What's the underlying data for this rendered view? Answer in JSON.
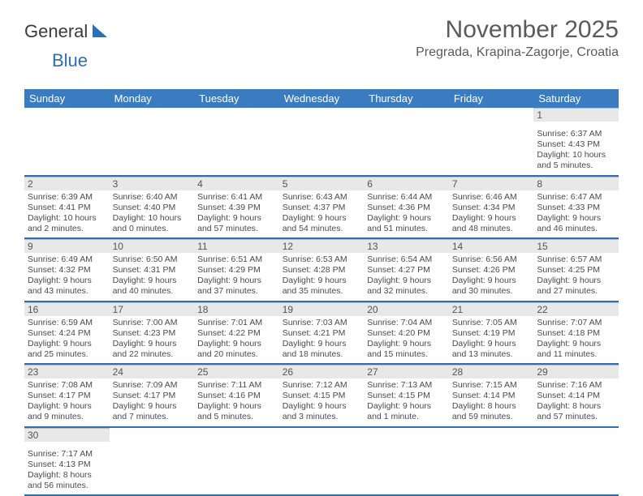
{
  "logo": {
    "text1": "General",
    "text2": "Blue"
  },
  "title": "November 2025",
  "location": "Pregrada, Krapina-Zagorje, Croatia",
  "colors": {
    "header_bg": "#3b7bbf",
    "header_fg": "#ffffff",
    "daynum_bg": "#e8e8e8",
    "rule": "#2d6fb5",
    "text": "#4a4a4a"
  },
  "weekdays": [
    "Sunday",
    "Monday",
    "Tuesday",
    "Wednesday",
    "Thursday",
    "Friday",
    "Saturday"
  ],
  "weeks": [
    [
      null,
      null,
      null,
      null,
      null,
      null,
      {
        "n": "1",
        "sr": "Sunrise: 6:37 AM",
        "ss": "Sunset: 4:43 PM",
        "dl": "Daylight: 10 hours and 5 minutes."
      }
    ],
    [
      {
        "n": "2",
        "sr": "Sunrise: 6:39 AM",
        "ss": "Sunset: 4:41 PM",
        "dl": "Daylight: 10 hours and 2 minutes."
      },
      {
        "n": "3",
        "sr": "Sunrise: 6:40 AM",
        "ss": "Sunset: 4:40 PM",
        "dl": "Daylight: 10 hours and 0 minutes."
      },
      {
        "n": "4",
        "sr": "Sunrise: 6:41 AM",
        "ss": "Sunset: 4:39 PM",
        "dl": "Daylight: 9 hours and 57 minutes."
      },
      {
        "n": "5",
        "sr": "Sunrise: 6:43 AM",
        "ss": "Sunset: 4:37 PM",
        "dl": "Daylight: 9 hours and 54 minutes."
      },
      {
        "n": "6",
        "sr": "Sunrise: 6:44 AM",
        "ss": "Sunset: 4:36 PM",
        "dl": "Daylight: 9 hours and 51 minutes."
      },
      {
        "n": "7",
        "sr": "Sunrise: 6:46 AM",
        "ss": "Sunset: 4:34 PM",
        "dl": "Daylight: 9 hours and 48 minutes."
      },
      {
        "n": "8",
        "sr": "Sunrise: 6:47 AM",
        "ss": "Sunset: 4:33 PM",
        "dl": "Daylight: 9 hours and 46 minutes."
      }
    ],
    [
      {
        "n": "9",
        "sr": "Sunrise: 6:49 AM",
        "ss": "Sunset: 4:32 PM",
        "dl": "Daylight: 9 hours and 43 minutes."
      },
      {
        "n": "10",
        "sr": "Sunrise: 6:50 AM",
        "ss": "Sunset: 4:31 PM",
        "dl": "Daylight: 9 hours and 40 minutes."
      },
      {
        "n": "11",
        "sr": "Sunrise: 6:51 AM",
        "ss": "Sunset: 4:29 PM",
        "dl": "Daylight: 9 hours and 37 minutes."
      },
      {
        "n": "12",
        "sr": "Sunrise: 6:53 AM",
        "ss": "Sunset: 4:28 PM",
        "dl": "Daylight: 9 hours and 35 minutes."
      },
      {
        "n": "13",
        "sr": "Sunrise: 6:54 AM",
        "ss": "Sunset: 4:27 PM",
        "dl": "Daylight: 9 hours and 32 minutes."
      },
      {
        "n": "14",
        "sr": "Sunrise: 6:56 AM",
        "ss": "Sunset: 4:26 PM",
        "dl": "Daylight: 9 hours and 30 minutes."
      },
      {
        "n": "15",
        "sr": "Sunrise: 6:57 AM",
        "ss": "Sunset: 4:25 PM",
        "dl": "Daylight: 9 hours and 27 minutes."
      }
    ],
    [
      {
        "n": "16",
        "sr": "Sunrise: 6:59 AM",
        "ss": "Sunset: 4:24 PM",
        "dl": "Daylight: 9 hours and 25 minutes."
      },
      {
        "n": "17",
        "sr": "Sunrise: 7:00 AM",
        "ss": "Sunset: 4:23 PM",
        "dl": "Daylight: 9 hours and 22 minutes."
      },
      {
        "n": "18",
        "sr": "Sunrise: 7:01 AM",
        "ss": "Sunset: 4:22 PM",
        "dl": "Daylight: 9 hours and 20 minutes."
      },
      {
        "n": "19",
        "sr": "Sunrise: 7:03 AM",
        "ss": "Sunset: 4:21 PM",
        "dl": "Daylight: 9 hours and 18 minutes."
      },
      {
        "n": "20",
        "sr": "Sunrise: 7:04 AM",
        "ss": "Sunset: 4:20 PM",
        "dl": "Daylight: 9 hours and 15 minutes."
      },
      {
        "n": "21",
        "sr": "Sunrise: 7:05 AM",
        "ss": "Sunset: 4:19 PM",
        "dl": "Daylight: 9 hours and 13 minutes."
      },
      {
        "n": "22",
        "sr": "Sunrise: 7:07 AM",
        "ss": "Sunset: 4:18 PM",
        "dl": "Daylight: 9 hours and 11 minutes."
      }
    ],
    [
      {
        "n": "23",
        "sr": "Sunrise: 7:08 AM",
        "ss": "Sunset: 4:17 PM",
        "dl": "Daylight: 9 hours and 9 minutes."
      },
      {
        "n": "24",
        "sr": "Sunrise: 7:09 AM",
        "ss": "Sunset: 4:17 PM",
        "dl": "Daylight: 9 hours and 7 minutes."
      },
      {
        "n": "25",
        "sr": "Sunrise: 7:11 AM",
        "ss": "Sunset: 4:16 PM",
        "dl": "Daylight: 9 hours and 5 minutes."
      },
      {
        "n": "26",
        "sr": "Sunrise: 7:12 AM",
        "ss": "Sunset: 4:15 PM",
        "dl": "Daylight: 9 hours and 3 minutes."
      },
      {
        "n": "27",
        "sr": "Sunrise: 7:13 AM",
        "ss": "Sunset: 4:15 PM",
        "dl": "Daylight: 9 hours and 1 minute."
      },
      {
        "n": "28",
        "sr": "Sunrise: 7:15 AM",
        "ss": "Sunset: 4:14 PM",
        "dl": "Daylight: 8 hours and 59 minutes."
      },
      {
        "n": "29",
        "sr": "Sunrise: 7:16 AM",
        "ss": "Sunset: 4:14 PM",
        "dl": "Daylight: 8 hours and 57 minutes."
      }
    ],
    [
      {
        "n": "30",
        "sr": "Sunrise: 7:17 AM",
        "ss": "Sunset: 4:13 PM",
        "dl": "Daylight: 8 hours and 56 minutes."
      },
      null,
      null,
      null,
      null,
      null,
      null
    ]
  ]
}
